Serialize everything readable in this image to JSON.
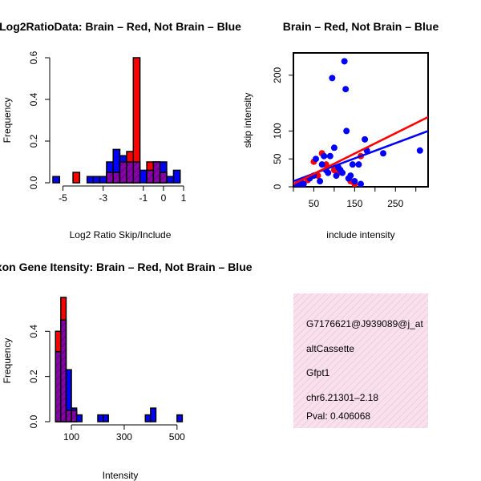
{
  "chart_data": [
    {
      "type": "histogram",
      "title": "Log2RatioData: Brain – Red, Not Brain – Blue",
      "xlabel": "Log2 Ratio Skip/Include",
      "ylabel": "Frequency",
      "xlim": [
        -5.5,
        1.2
      ],
      "ylim": [
        0,
        0.6
      ],
      "x_ticks": [
        -5,
        -3,
        -1,
        0,
        1
      ],
      "y_ticks": [
        0.0,
        0.2,
        0.4,
        0.6
      ],
      "bin_width": 0.33,
      "bins": [
        {
          "x0": -5.5,
          "blue": 0.03,
          "red": 0.0
        },
        {
          "x0": -4.5,
          "blue": 0.0,
          "red": 0.05
        },
        {
          "x0": -3.8,
          "blue": 0.03,
          "red": 0.0
        },
        {
          "x0": -3.5,
          "blue": 0.03,
          "red": 0.0
        },
        {
          "x0": -3.17,
          "blue": 0.03,
          "red": 0.0
        },
        {
          "x0": -2.83,
          "blue": 0.1,
          "red": 0.05
        },
        {
          "x0": -2.5,
          "blue": 0.16,
          "red": 0.05
        },
        {
          "x0": -2.17,
          "blue": 0.13,
          "red": 0.1
        },
        {
          "x0": -1.83,
          "blue": 0.1,
          "red": 0.15
        },
        {
          "x0": -1.5,
          "blue": 0.1,
          "red": 0.6
        },
        {
          "x0": -1.17,
          "blue": 0.06,
          "red": 0.0
        },
        {
          "x0": -0.83,
          "blue": 0.06,
          "red": 0.1
        },
        {
          "x0": -0.5,
          "blue": 0.1,
          "red": 0.1
        },
        {
          "x0": -0.17,
          "blue": 0.1,
          "red": 0.05
        },
        {
          "x0": 0.17,
          "blue": 0.03,
          "red": 0.0
        },
        {
          "x0": 0.5,
          "blue": 0.06,
          "red": 0.0
        }
      ],
      "series": [
        {
          "name": "Brain",
          "color": "#ff0000"
        },
        {
          "name": "Not Brain",
          "color": "#0000ff"
        }
      ]
    },
    {
      "type": "scatter",
      "title": "Brain – Red, Not Brain – Blue",
      "xlabel": "include intensity",
      "ylabel": "skip intensity",
      "xlim": [
        0,
        330
      ],
      "ylim": [
        0,
        240
      ],
      "x_ticks": [
        50,
        150,
        250
      ],
      "x_ticks_minor": [
        0,
        100,
        200,
        300
      ],
      "y_ticks": [
        0,
        50,
        100,
        200
      ],
      "series": [
        {
          "name": "Brain",
          "color": "#ff0000",
          "points": [
            [
              10,
              5
            ],
            [
              20,
              8
            ],
            [
              35,
              12
            ],
            [
              50,
              45
            ],
            [
              60,
              20
            ],
            [
              70,
              60
            ],
            [
              80,
              40
            ],
            [
              100,
              30
            ],
            [
              110,
              25
            ],
            [
              140,
              10
            ],
            [
              150,
              5
            ],
            [
              165,
              55
            ]
          ],
          "fit": [
            [
              0,
              5
            ],
            [
              330,
              125
            ]
          ]
        },
        {
          "name": "Not Brain",
          "color": "#0000ff",
          "points": [
            [
              10,
              3
            ],
            [
              20,
              6
            ],
            [
              25,
              5
            ],
            [
              40,
              15
            ],
            [
              50,
              20
            ],
            [
              55,
              50
            ],
            [
              65,
              10
            ],
            [
              70,
              40
            ],
            [
              75,
              55
            ],
            [
              80,
              30
            ],
            [
              85,
              25
            ],
            [
              90,
              55
            ],
            [
              95,
              195
            ],
            [
              100,
              70
            ],
            [
              105,
              20
            ],
            [
              110,
              35
            ],
            [
              115,
              30
            ],
            [
              120,
              25
            ],
            [
              125,
              225
            ],
            [
              128,
              175
            ],
            [
              130,
              100
            ],
            [
              135,
              15
            ],
            [
              140,
              20
            ],
            [
              145,
              40
            ],
            [
              150,
              10
            ],
            [
              160,
              40
            ],
            [
              165,
              5
            ],
            [
              175,
              85
            ],
            [
              180,
              65
            ],
            [
              220,
              60
            ],
            [
              310,
              65
            ]
          ],
          "fit": [
            [
              0,
              10
            ],
            [
              330,
              100
            ]
          ]
        }
      ]
    },
    {
      "type": "histogram",
      "title": "Exon Gene Itensity: Brain – Red, Not Brain – Blue",
      "xlabel": "Intensity",
      "ylabel": "Frequency",
      "xlim": [
        30,
        540
      ],
      "ylim": [
        0,
        0.55
      ],
      "x_ticks": [
        100,
        300,
        500
      ],
      "y_ticks": [
        0.0,
        0.2,
        0.4
      ],
      "bin_width": 20,
      "bins": [
        {
          "x0": 40,
          "blue": 0.31,
          "red": 0.4
        },
        {
          "x0": 60,
          "blue": 0.45,
          "red": 0.55
        },
        {
          "x0": 80,
          "blue": 0.23,
          "red": 0.05
        },
        {
          "x0": 100,
          "blue": 0.06,
          "red": 0.05
        },
        {
          "x0": 120,
          "blue": 0.03,
          "red": 0.0
        },
        {
          "x0": 200,
          "blue": 0.03,
          "red": 0.0
        },
        {
          "x0": 220,
          "blue": 0.03,
          "red": 0.0
        },
        {
          "x0": 380,
          "blue": 0.03,
          "red": 0.0
        },
        {
          "x0": 400,
          "blue": 0.06,
          "red": 0.0
        },
        {
          "x0": 500,
          "blue": 0.03,
          "red": 0.0
        }
      ],
      "series": [
        {
          "name": "Brain",
          "color": "#ff0000"
        },
        {
          "name": "Not Brain",
          "color": "#0000ff"
        }
      ]
    }
  ],
  "info_panel": {
    "id": "G7176621@J939089@j_at",
    "event_type": "altCassette",
    "gene": "Gfpt1",
    "location": "chr6.21301–2.18",
    "pval": "Pval: 0.406068",
    "background": "#f7dbe8",
    "pval_color": "#aa0000"
  }
}
